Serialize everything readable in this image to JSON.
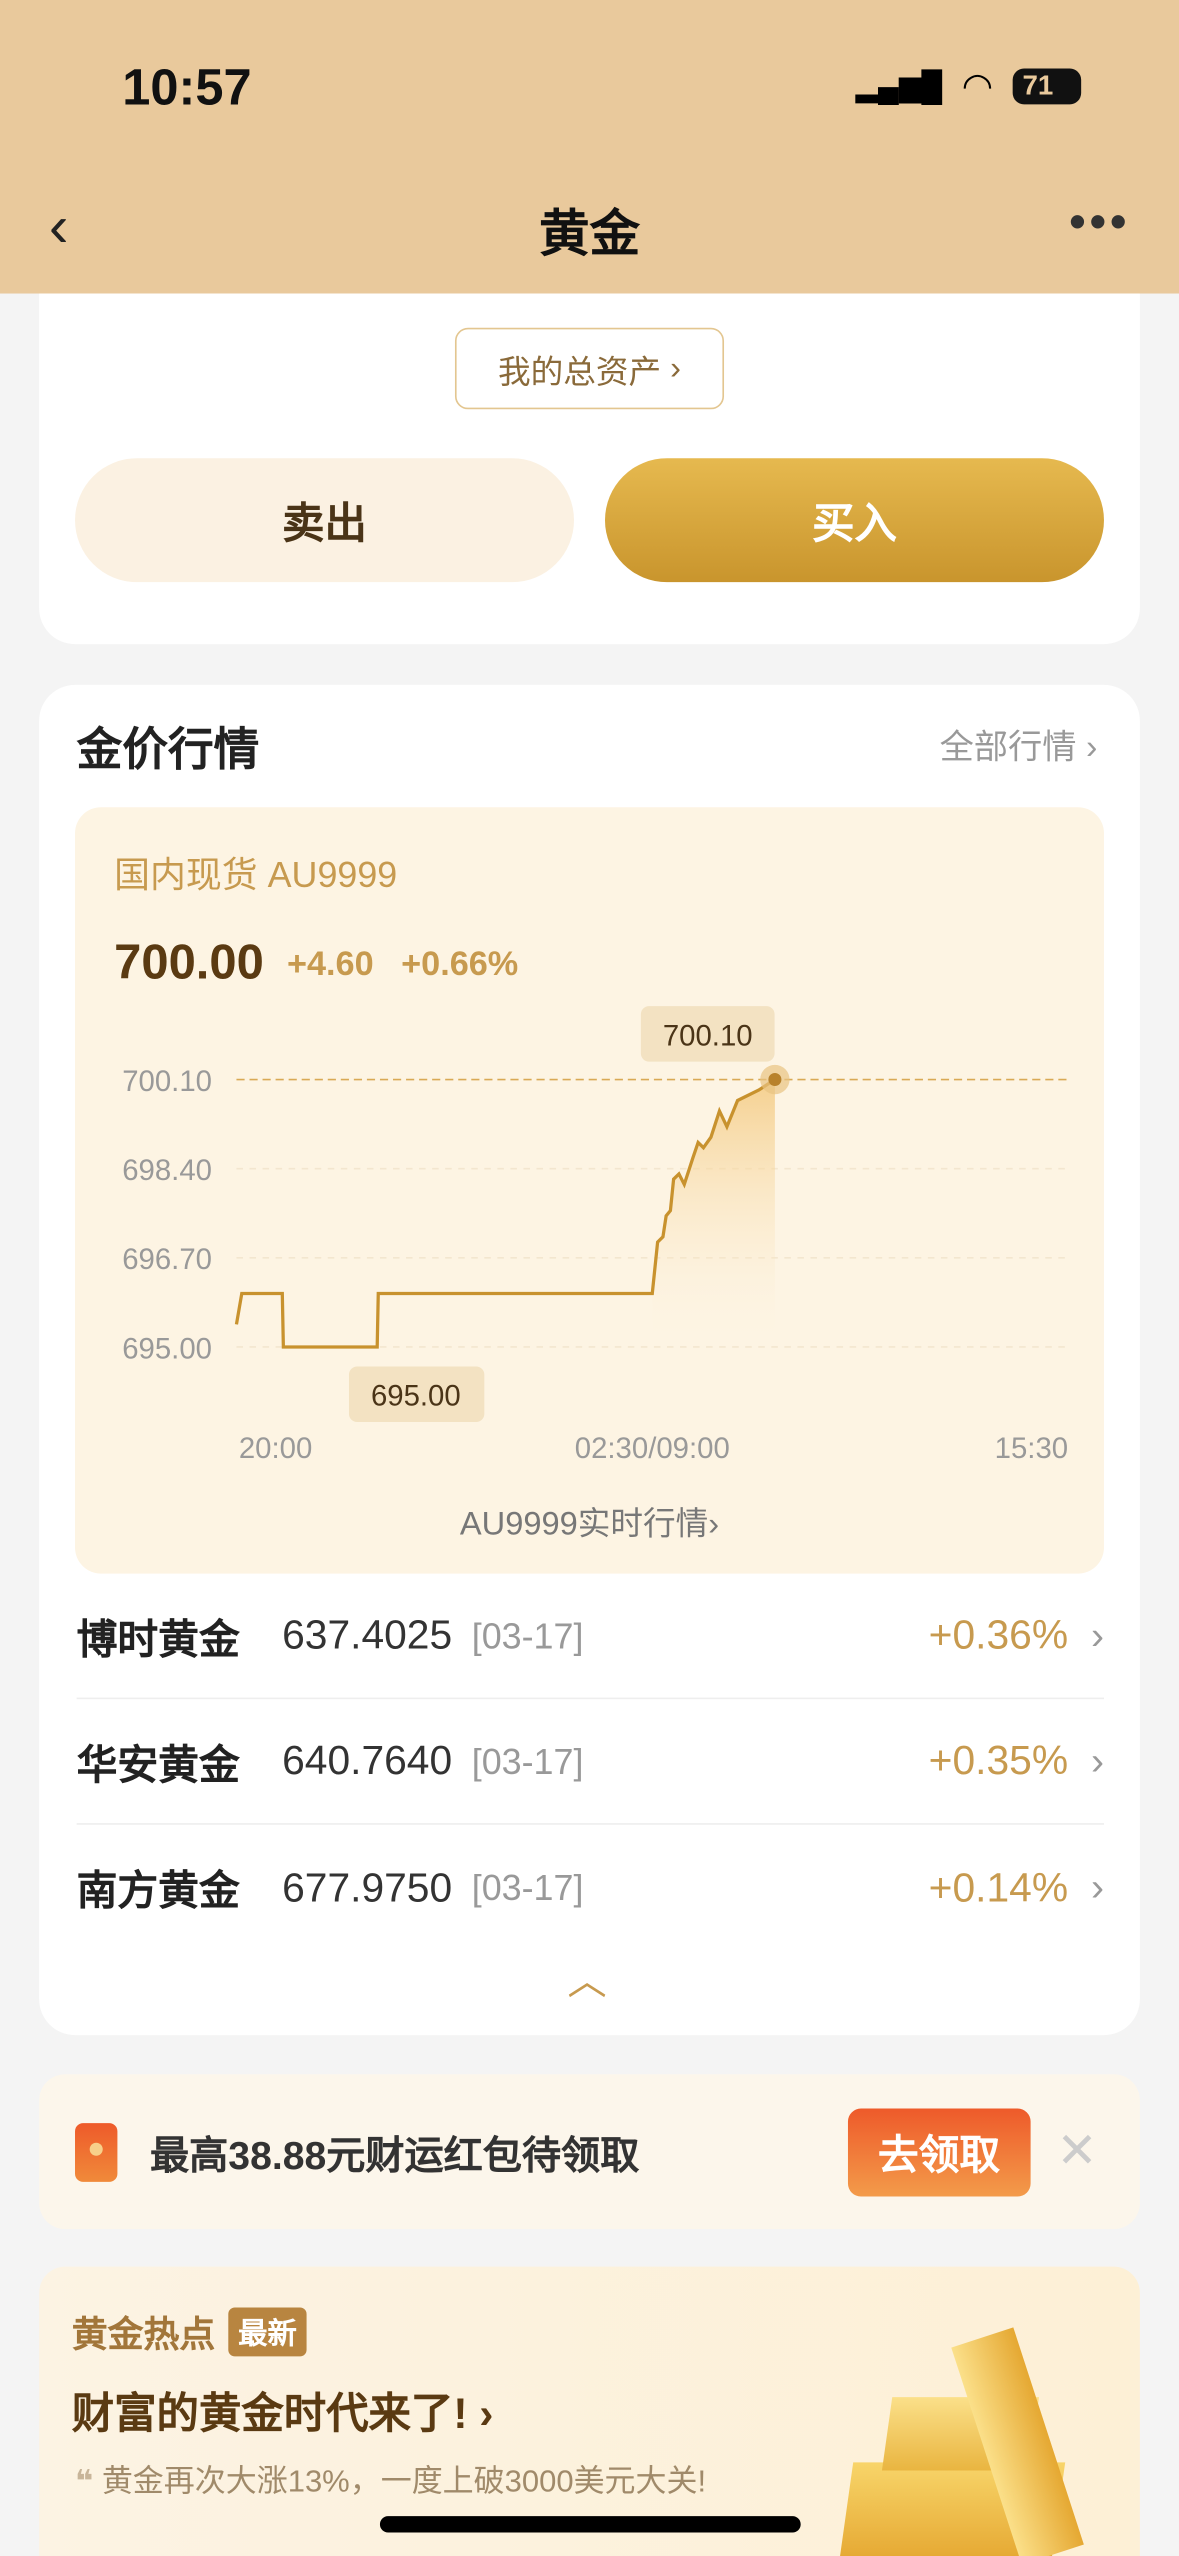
{
  "status": {
    "time": "10:57",
    "battery": "71"
  },
  "nav": {
    "title": "黄金"
  },
  "top": {
    "assets_label": "我的总资产",
    "sell": "卖出",
    "buy": "买入"
  },
  "market": {
    "title": "金价行情",
    "all_label": "全部行情",
    "symbol": "国内现货 AU9999",
    "price": "700.00",
    "change": "+4.60",
    "change_pct": "+0.66%",
    "link": "AU9999实时行情"
  },
  "chart_data": {
    "type": "line",
    "y_ticks": [
      "700.10",
      "698.40",
      "696.70",
      "695.00"
    ],
    "ylim": [
      695.0,
      700.1
    ],
    "x_ticks": [
      "20:00",
      "02:30/09:00",
      "15:30"
    ],
    "max_label": "700.10",
    "min_label": "695.00",
    "reference_line": 700.1,
    "points": [
      [
        "20:00",
        695.43
      ],
      [
        "20:05",
        696.02
      ],
      [
        "20:43",
        696.02
      ],
      [
        "20:44",
        695.0
      ],
      [
        "22:12",
        695.0
      ],
      [
        "22:13",
        696.02
      ],
      [
        "02:30",
        696.02
      ],
      [
        "09:00",
        696.02
      ],
      [
        "09:05",
        697.0
      ],
      [
        "09:10",
        697.1
      ],
      [
        "09:13",
        697.5
      ],
      [
        "09:17",
        697.6
      ],
      [
        "09:20",
        698.2
      ],
      [
        "09:25",
        698.3
      ],
      [
        "09:30",
        698.1
      ],
      [
        "09:38",
        698.6
      ],
      [
        "09:43",
        698.9
      ],
      [
        "09:48",
        698.8
      ],
      [
        "09:55",
        699.0
      ],
      [
        "10:03",
        699.5
      ],
      [
        "10:10",
        699.2
      ],
      [
        "10:20",
        699.7
      ],
      [
        "10:40",
        699.9
      ],
      [
        "10:55",
        700.1
      ]
    ]
  },
  "funds": [
    {
      "name": "博时黄金",
      "value": "637.4025",
      "date": "[03-17]",
      "pct": "+0.36%"
    },
    {
      "name": "华安黄金",
      "value": "640.7640",
      "date": "[03-17]",
      "pct": "+0.35%"
    },
    {
      "name": "南方黄金",
      "value": "677.9750",
      "date": "[03-17]",
      "pct": "+0.14%"
    }
  ],
  "promo": {
    "text": "最高38.88元财运红包待领取",
    "button": "去领取"
  },
  "hot": {
    "title": "黄金热点",
    "badge": "最新",
    "headline": "财富的黄金时代来了!",
    "quote": "黄金再次大涨13%，一度上破3000美元大关!"
  },
  "colors": {
    "header": "#e9c99c",
    "accent": "#c79a4f",
    "promo_button": "#ee5a2a"
  }
}
